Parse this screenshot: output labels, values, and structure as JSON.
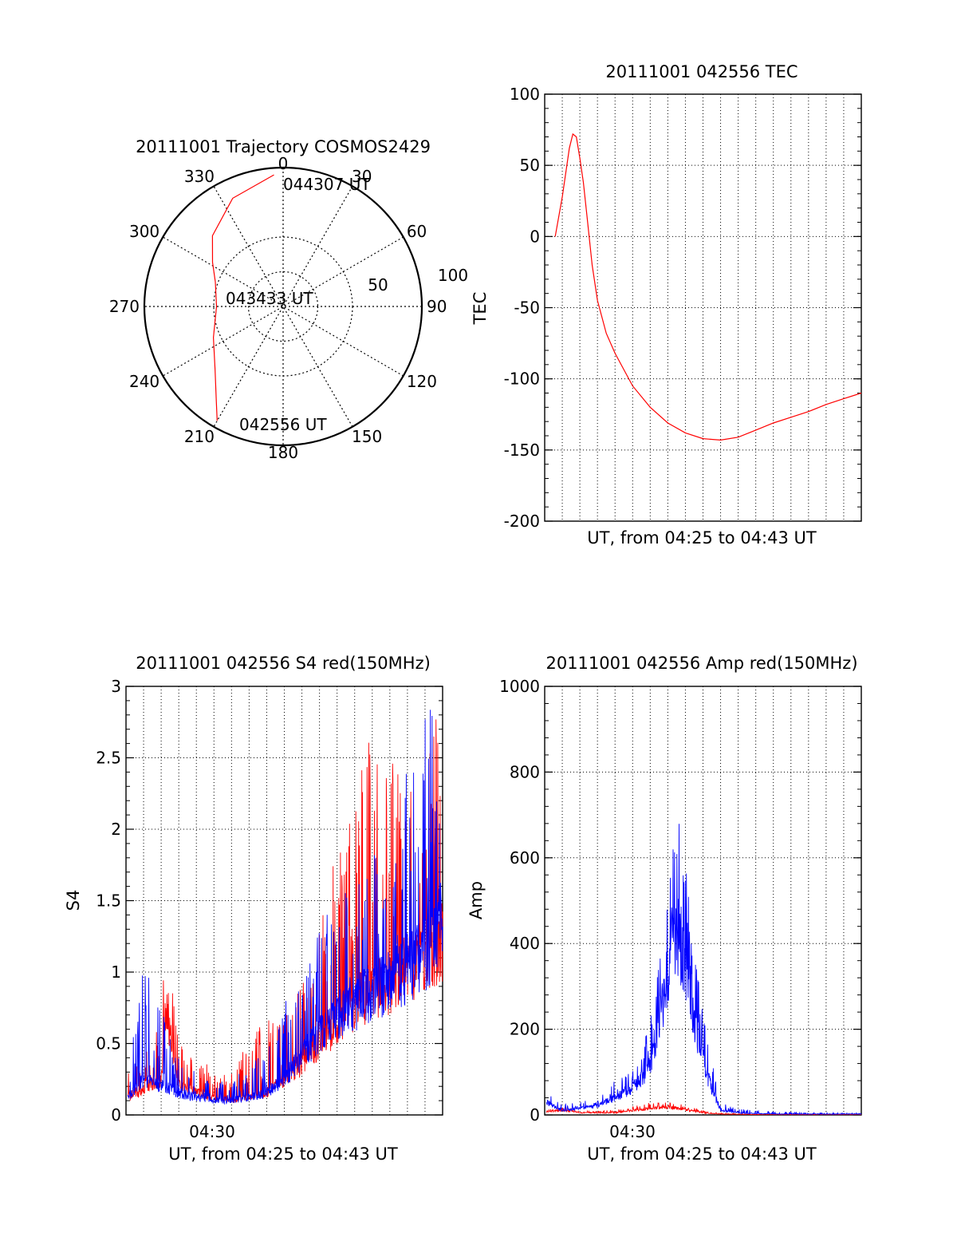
{
  "colors": {
    "red": "#ff0000",
    "blue": "#0000ff",
    "axes": "#000000",
    "grid": "#000000"
  },
  "chart_data": [
    {
      "id": "trajectory",
      "type": "polar",
      "title": "20111001 Trajectory COSMOS2429",
      "angle_labels": [
        "0",
        "30",
        "60",
        "90",
        "120",
        "150",
        "180",
        "210",
        "240",
        "270",
        "300",
        "330"
      ],
      "radius_labels": [
        "50",
        "100"
      ],
      "rlim": [
        0,
        100
      ],
      "grid": true,
      "annotations": [
        "044307 UT",
        "043433 UT",
        "042556 UT"
      ],
      "series": [
        {
          "color": "red",
          "azimuth": [
            210,
            216,
            227,
            246,
            270,
            290,
            302,
            315,
            335,
            356
          ],
          "radius": [
            95,
            82,
            67,
            55,
            48,
            52,
            60,
            72,
            86,
            95
          ]
        }
      ]
    },
    {
      "id": "tec",
      "type": "line",
      "title": "20111001 042556 TEC",
      "xlabel": "UT, from 04:25 to 04:43 UT",
      "ylabel": "TEC",
      "xlim": [
        0,
        18
      ],
      "ylim": [
        -200,
        100
      ],
      "yticks": [
        "100",
        "50",
        "0",
        "-50",
        "-100",
        "-150",
        "-200"
      ],
      "grid": true,
      "series": [
        {
          "color": "red",
          "x": [
            0.6,
            1.0,
            1.4,
            1.6,
            1.8,
            2.0,
            2.2,
            2.4,
            2.7,
            3.0,
            3.5,
            4.0,
            5.0,
            6.0,
            7.0,
            8.0,
            9.0,
            10.0,
            11.0,
            12.0,
            13.0,
            14.0,
            15.0,
            16.0,
            17.0,
            18.0
          ],
          "y": [
            0,
            28,
            62,
            72,
            70,
            55,
            38,
            15,
            -20,
            -45,
            -68,
            -82,
            -105,
            -120,
            -131,
            -138,
            -142,
            -143,
            -141,
            -136,
            -131,
            -127,
            -123,
            -118,
            -114,
            -110
          ]
        }
      ]
    },
    {
      "id": "s4",
      "type": "line",
      "title": "20111001 042556 S4 red(150MHz)",
      "xlabel": "UT, from 04:25 to 04:43 UT",
      "ylabel": "S4",
      "xtick_label": "04:30",
      "xlim": [
        0,
        18
      ],
      "ylim": [
        0,
        3
      ],
      "yticks": [
        "3",
        "2.5",
        "2",
        "1.5",
        "1",
        "0.5",
        "0"
      ],
      "grid": true,
      "series": [
        {
          "color": "red",
          "x": [
            0.1,
            1.0,
            2.0,
            2.3,
            3.0,
            4.0,
            5.0,
            6.0,
            7.0,
            8.0,
            9.0,
            10.0,
            11.0,
            12.0,
            13.0,
            14.0,
            15.0,
            16.0,
            17.0,
            18.0
          ],
          "y": [
            0.12,
            0.18,
            0.25,
            0.75,
            0.2,
            0.15,
            0.12,
            0.1,
            0.12,
            0.15,
            0.25,
            0.35,
            0.5,
            0.6,
            0.75,
            0.85,
            0.9,
            1.0,
            1.1,
            1.2
          ],
          "envelope": [
            0.3,
            0.45,
            0.7,
            1.3,
            0.5,
            0.45,
            0.3,
            0.35,
            0.5,
            0.7,
            0.7,
            0.9,
            1.3,
            1.9,
            2.2,
            3.0,
            2.5,
            2.3,
            2.4,
            3.0
          ]
        },
        {
          "color": "blue",
          "x": [
            0.1,
            1.0,
            2.0,
            3.0,
            4.0,
            5.0,
            6.0,
            7.0,
            8.0,
            9.0,
            10.0,
            11.0,
            12.0,
            13.0,
            14.0,
            15.0,
            16.0,
            17.0,
            18.0
          ],
          "y": [
            0.12,
            0.25,
            0.2,
            0.15,
            0.12,
            0.1,
            0.1,
            0.12,
            0.15,
            0.25,
            0.4,
            0.55,
            0.65,
            0.75,
            0.85,
            0.9,
            1.0,
            1.1,
            1.3
          ],
          "envelope": [
            0.3,
            1.05,
            0.75,
            0.4,
            0.3,
            0.25,
            0.25,
            0.35,
            0.5,
            0.8,
            1.0,
            1.3,
            1.6,
            1.7,
            1.8,
            2.0,
            2.5,
            3.0,
            3.0
          ]
        }
      ]
    },
    {
      "id": "amp",
      "type": "line",
      "title": "20111001 042556 Amp red(150MHz)",
      "xlabel": "UT, from 04:25 to 04:43 UT",
      "ylabel": "Amp",
      "xtick_label": "04:30",
      "xlim": [
        0,
        18
      ],
      "ylim": [
        0,
        1000
      ],
      "yticks": [
        "1000",
        "800",
        "600",
        "400",
        "200",
        "0"
      ],
      "grid": true,
      "series": [
        {
          "color": "red",
          "x": [
            0.1,
            1.0,
            2.0,
            3.0,
            4.0,
            5.0,
            6.0,
            7.0,
            8.0,
            9.0,
            10.0,
            12.0,
            14.0,
            16.0,
            18.0
          ],
          "y": [
            8,
            10,
            5,
            5,
            5,
            10,
            15,
            18,
            12,
            5,
            2,
            1,
            1,
            1,
            1
          ],
          "envelope": [
            15,
            20,
            10,
            10,
            12,
            20,
            30,
            30,
            25,
            10,
            5,
            2,
            2,
            2,
            2
          ]
        },
        {
          "color": "blue",
          "x": [
            0.1,
            0.5,
            1.0,
            2.0,
            3.0,
            4.0,
            5.0,
            5.5,
            6.0,
            6.5,
            7.0,
            7.5,
            8.0,
            8.5,
            9.0,
            9.5,
            10.0,
            11.0,
            12.0,
            14.0,
            16.0,
            18.0
          ],
          "y": [
            30,
            20,
            10,
            15,
            20,
            40,
            60,
            80,
            120,
            200,
            330,
            420,
            350,
            220,
            120,
            60,
            10,
            5,
            3,
            2,
            2,
            2
          ],
          "envelope": [
            65,
            40,
            25,
            30,
            40,
            80,
            110,
            150,
            220,
            350,
            520,
            760,
            600,
            380,
            250,
            140,
            30,
            15,
            10,
            6,
            5,
            5
          ]
        }
      ]
    }
  ]
}
